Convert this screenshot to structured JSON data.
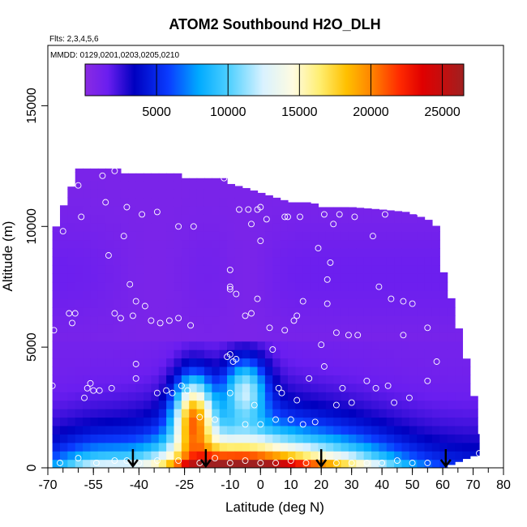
{
  "chart_data": {
    "type": "heatmap",
    "title": "ATOM2 Southbound H2O_DLH",
    "subtitle_flights": "Flts: 2,3,4,5,6",
    "subtitle_dates": "MMDD: 0129,0201,0203,0205,0210",
    "xlabel": "Latitude (deg N)",
    "ylabel": "Altitude (m)",
    "xlim": [
      -70,
      80
    ],
    "ylim": [
      0,
      17500
    ],
    "x_ticks": [
      -70,
      -55,
      -40,
      -25,
      -10,
      0,
      10,
      20,
      30,
      40,
      50,
      60,
      70,
      80
    ],
    "x_tick_labels": [
      "-70",
      "-55",
      "-40",
      "-25",
      "-10",
      "0",
      "10",
      "20",
      "30",
      "40",
      "50",
      "60",
      "70",
      "80"
    ],
    "x_minor_step": 5,
    "y_ticks": [
      0,
      5000,
      10000,
      15000
    ],
    "y_tick_labels": [
      "0",
      "5000",
      "10000",
      "15000"
    ],
    "grid": false,
    "colorbar": {
      "placement": "top-inside",
      "min": 0,
      "max": 26500,
      "ticks": [
        5000,
        10000,
        15000,
        20000,
        25000
      ],
      "tick_labels": [
        "5000",
        "10000",
        "15000",
        "20000",
        "25000"
      ],
      "stops": [
        [
          0,
          "#8a2be2"
        ],
        [
          0.06,
          "#6a1ef0"
        ],
        [
          0.13,
          "#0000c0"
        ],
        [
          0.22,
          "#0a3cff"
        ],
        [
          0.3,
          "#00aaff"
        ],
        [
          0.38,
          "#4fd0ff"
        ],
        [
          0.47,
          "#d9f2ff"
        ],
        [
          0.55,
          "#fffbe0"
        ],
        [
          0.62,
          "#ffee70"
        ],
        [
          0.69,
          "#ffc000"
        ],
        [
          0.76,
          "#ff8000"
        ],
        [
          0.83,
          "#ff2a00"
        ],
        [
          0.89,
          "#e00000"
        ],
        [
          0.95,
          "#c01010"
        ],
        [
          1,
          "#a02020"
        ]
      ]
    },
    "field": {
      "lat_range": [
        -68.5,
        72
      ],
      "top_profile": [
        [
          -68.5,
          9500
        ],
        [
          -66,
          10500
        ],
        [
          -63,
          11400
        ],
        [
          -60,
          12400
        ],
        [
          -47,
          12400
        ],
        [
          -46,
          12200
        ],
        [
          -27,
          12200
        ],
        [
          -26,
          12000
        ],
        [
          -20,
          12000
        ],
        [
          -12,
          12000
        ],
        [
          -11,
          11800
        ],
        [
          -5,
          11600
        ],
        [
          5,
          11200
        ],
        [
          10,
          11000
        ],
        [
          17,
          11000
        ],
        [
          20,
          10800
        ],
        [
          30,
          10800
        ],
        [
          40,
          10700
        ],
        [
          48,
          10600
        ],
        [
          55,
          10300
        ],
        [
          58,
          10000
        ],
        [
          60,
          8200
        ],
        [
          62,
          7400
        ],
        [
          64,
          6400
        ],
        [
          66,
          5400
        ],
        [
          68,
          4400
        ],
        [
          70,
          3200
        ],
        [
          72,
          1400
        ]
      ],
      "bottom_profile": [
        [
          -68.5,
          0
        ],
        [
          60,
          0
        ],
        [
          62,
          100
        ],
        [
          64,
          200
        ],
        [
          66,
          300
        ],
        [
          68,
          400
        ],
        [
          70,
          500
        ],
        [
          72,
          500
        ]
      ]
    },
    "annotations": [
      {
        "type": "arrow-down",
        "lat": -42
      },
      {
        "type": "arrow-down",
        "lat": -18
      },
      {
        "type": "arrow-down",
        "lat": 20
      },
      {
        "type": "arrow-down",
        "lat": 61
      }
    ],
    "observations": [
      [
        -68.5,
        3400
      ],
      [
        -68,
        5700
      ],
      [
        -66,
        200
      ],
      [
        -65,
        9800
      ],
      [
        -63,
        6400
      ],
      [
        -62,
        6000
      ],
      [
        -61,
        6400
      ],
      [
        -60,
        11700
      ],
      [
        -59,
        10400
      ],
      [
        -58,
        2900
      ],
      [
        -57,
        3300
      ],
      [
        -56,
        3500
      ],
      [
        -55,
        3200
      ],
      [
        -53,
        3200
      ],
      [
        -52,
        12100
      ],
      [
        -51,
        11000
      ],
      [
        -50,
        8800
      ],
      [
        -49,
        3300
      ],
      [
        -48,
        12300
      ],
      [
        -48,
        6400
      ],
      [
        -46,
        6200
      ],
      [
        -45,
        9600
      ],
      [
        -44,
        10800
      ],
      [
        -43,
        7600
      ],
      [
        -42,
        6300
      ],
      [
        -41,
        6900
      ],
      [
        -41,
        4300
      ],
      [
        -41,
        3700
      ],
      [
        -39,
        10500
      ],
      [
        -38,
        6700
      ],
      [
        -36,
        6100
      ],
      [
        -34,
        10600
      ],
      [
        -34,
        3100
      ],
      [
        -33,
        6000
      ],
      [
        -31,
        3200
      ],
      [
        -30,
        6100
      ],
      [
        -29,
        3100
      ],
      [
        -27,
        10000
      ],
      [
        -27,
        6200
      ],
      [
        -26,
        3400
      ],
      [
        -24,
        3200
      ],
      [
        -23,
        5900
      ],
      [
        -22,
        10000
      ],
      [
        -12,
        12000
      ],
      [
        -11,
        4600
      ],
      [
        -10,
        4700
      ],
      [
        -9,
        4400
      ],
      [
        -8,
        4500
      ],
      [
        -10,
        8200
      ],
      [
        -10,
        7400
      ],
      [
        -10,
        7500
      ],
      [
        -8,
        7200
      ],
      [
        -7,
        10700
      ],
      [
        -5,
        6300
      ],
      [
        -4,
        10700
      ],
      [
        -3,
        10100
      ],
      [
        -3,
        6400
      ],
      [
        -2,
        2600
      ],
      [
        -1,
        7000
      ],
      [
        -1,
        10700
      ],
      [
        0,
        10800
      ],
      [
        0,
        9400
      ],
      [
        2,
        10300
      ],
      [
        3,
        5800
      ],
      [
        4,
        4900
      ],
      [
        6,
        3300
      ],
      [
        7,
        3100
      ],
      [
        8,
        10400
      ],
      [
        8,
        5700
      ],
      [
        9,
        10400
      ],
      [
        11,
        6100
      ],
      [
        12,
        6300
      ],
      [
        12,
        2800
      ],
      [
        13,
        10400
      ],
      [
        14,
        6900
      ],
      [
        16,
        3700
      ],
      [
        19,
        9100
      ],
      [
        20,
        5100
      ],
      [
        21,
        4200
      ],
      [
        21,
        10500
      ],
      [
        22,
        7800
      ],
      [
        22,
        6800
      ],
      [
        23,
        8500
      ],
      [
        24,
        10100
      ],
      [
        25,
        5600
      ],
      [
        25,
        2600
      ],
      [
        26,
        10500
      ],
      [
        27,
        3300
      ],
      [
        29,
        5500
      ],
      [
        30,
        2700
      ],
      [
        31,
        10400
      ],
      [
        32,
        5500
      ],
      [
        35,
        3600
      ],
      [
        37,
        9600
      ],
      [
        38,
        3300
      ],
      [
        39,
        7500
      ],
      [
        41,
        10500
      ],
      [
        42,
        3400
      ],
      [
        43,
        7000
      ],
      [
        44,
        2700
      ],
      [
        47,
        5500
      ],
      [
        47,
        6900
      ],
      [
        49,
        2900
      ],
      [
        50,
        6800
      ],
      [
        52,
        10600
      ],
      [
        55,
        5800
      ],
      [
        55,
        3600
      ],
      [
        58,
        4400
      ],
      [
        -60,
        400
      ],
      [
        -54,
        200
      ],
      [
        -48,
        300
      ],
      [
        -44,
        300
      ],
      [
        -40,
        200
      ],
      [
        -34,
        300
      ],
      [
        -27,
        300
      ],
      [
        -20,
        200
      ],
      [
        -15,
        400
      ],
      [
        -10,
        200
      ],
      [
        -5,
        300
      ],
      [
        0,
        200
      ],
      [
        5,
        200
      ],
      [
        10,
        300
      ],
      [
        15,
        200
      ],
      [
        25,
        200
      ],
      [
        30,
        200
      ],
      [
        35,
        200
      ],
      [
        40,
        200
      ],
      [
        45,
        300
      ],
      [
        50,
        200
      ],
      [
        55,
        200
      ],
      [
        72,
        600
      ],
      [
        -10,
        3100
      ],
      [
        -5,
        1800
      ],
      [
        0,
        1800
      ],
      [
        5,
        2000
      ],
      [
        10,
        2000
      ],
      [
        14,
        1800
      ],
      [
        18,
        1900
      ],
      [
        -20,
        2100
      ],
      [
        -15,
        2000
      ]
    ]
  }
}
